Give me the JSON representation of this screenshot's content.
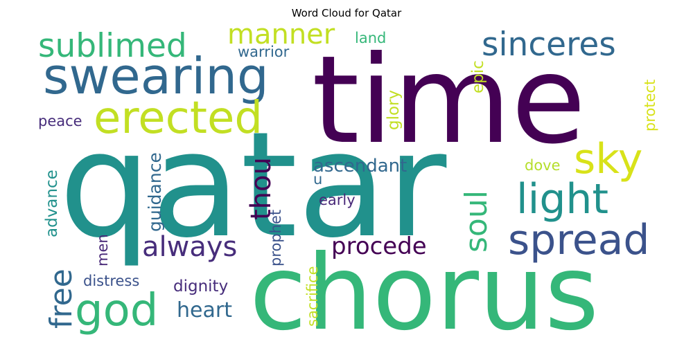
{
  "chart_data": {
    "type": "wordcloud",
    "title": "Word Cloud for Qatar",
    "background": "#ffffff",
    "colormap": "viridis",
    "words": [
      {
        "text": "qatar",
        "color": "#21918c"
      },
      {
        "text": "time",
        "color": "#440154"
      },
      {
        "text": "chorus",
        "color": "#35b779"
      },
      {
        "text": "swearing",
        "color": "#31688e"
      },
      {
        "text": "erected",
        "color": "#c2df23"
      },
      {
        "text": "sublimed",
        "color": "#35b779"
      },
      {
        "text": "manner",
        "color": "#c2df23"
      },
      {
        "text": "sinceres",
        "color": "#31688e"
      },
      {
        "text": "warrior",
        "color": "#31688e"
      },
      {
        "text": "land",
        "color": "#35b779"
      },
      {
        "text": "glory",
        "color": "#c2df23"
      },
      {
        "text": "epic",
        "color": "#c2df23"
      },
      {
        "text": "protect",
        "color": "#d8e219"
      },
      {
        "text": "sky",
        "color": "#d8e219"
      },
      {
        "text": "light",
        "color": "#21918c"
      },
      {
        "text": "spread",
        "color": "#3b528b"
      },
      {
        "text": "soul",
        "color": "#35b779"
      },
      {
        "text": "dove",
        "color": "#b5de2b"
      },
      {
        "text": "peace",
        "color": "#472d7b"
      },
      {
        "text": "thou",
        "color": "#440154"
      },
      {
        "text": "ascendant",
        "color": "#31688e"
      },
      {
        "text": "u",
        "color": "#31688e"
      },
      {
        "text": "early",
        "color": "#482878"
      },
      {
        "text": "procede",
        "color": "#440154"
      },
      {
        "text": "always",
        "color": "#472d7b"
      },
      {
        "text": "prophet",
        "color": "#3b528b"
      },
      {
        "text": "guidance",
        "color": "#31688e"
      },
      {
        "text": "advance",
        "color": "#21918c"
      },
      {
        "text": "free",
        "color": "#31688e"
      },
      {
        "text": "men",
        "color": "#482878"
      },
      {
        "text": "god",
        "color": "#35b779"
      },
      {
        "text": "distress",
        "color": "#3b528b"
      },
      {
        "text": "dignity",
        "color": "#472d7b"
      },
      {
        "text": "heart",
        "color": "#31688e"
      },
      {
        "text": "sacrifice",
        "color": "#c2df23"
      }
    ]
  }
}
